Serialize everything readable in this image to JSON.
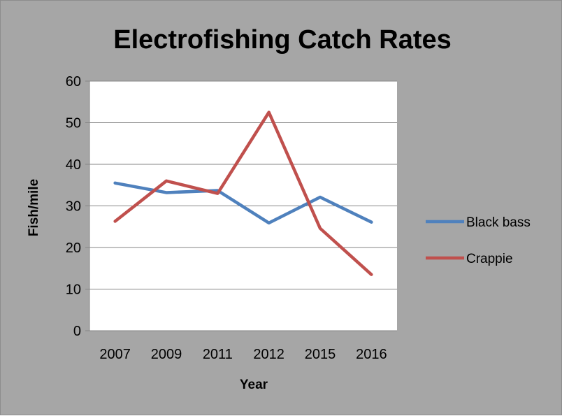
{
  "chart_data": {
    "type": "line",
    "title": "Electrofishing Catch Rates",
    "xlabel": "Year",
    "ylabel": "Fish/mile",
    "categories": [
      "2007",
      "2009",
      "2011",
      "2012",
      "2015",
      "2016"
    ],
    "ylim": [
      0,
      60
    ],
    "yticks": [
      0,
      10,
      20,
      30,
      40,
      50,
      60
    ],
    "grid": "horizontal",
    "legend": "right",
    "series": [
      {
        "name": "Black bass",
        "color": "#4f81bd",
        "values": [
          35.5,
          33.2,
          33.7,
          25.9,
          32.1,
          26.1
        ]
      },
      {
        "name": "Crappie",
        "color": "#c0504d",
        "values": [
          26.3,
          36.0,
          33.0,
          52.5,
          24.6,
          13.5
        ]
      }
    ]
  }
}
